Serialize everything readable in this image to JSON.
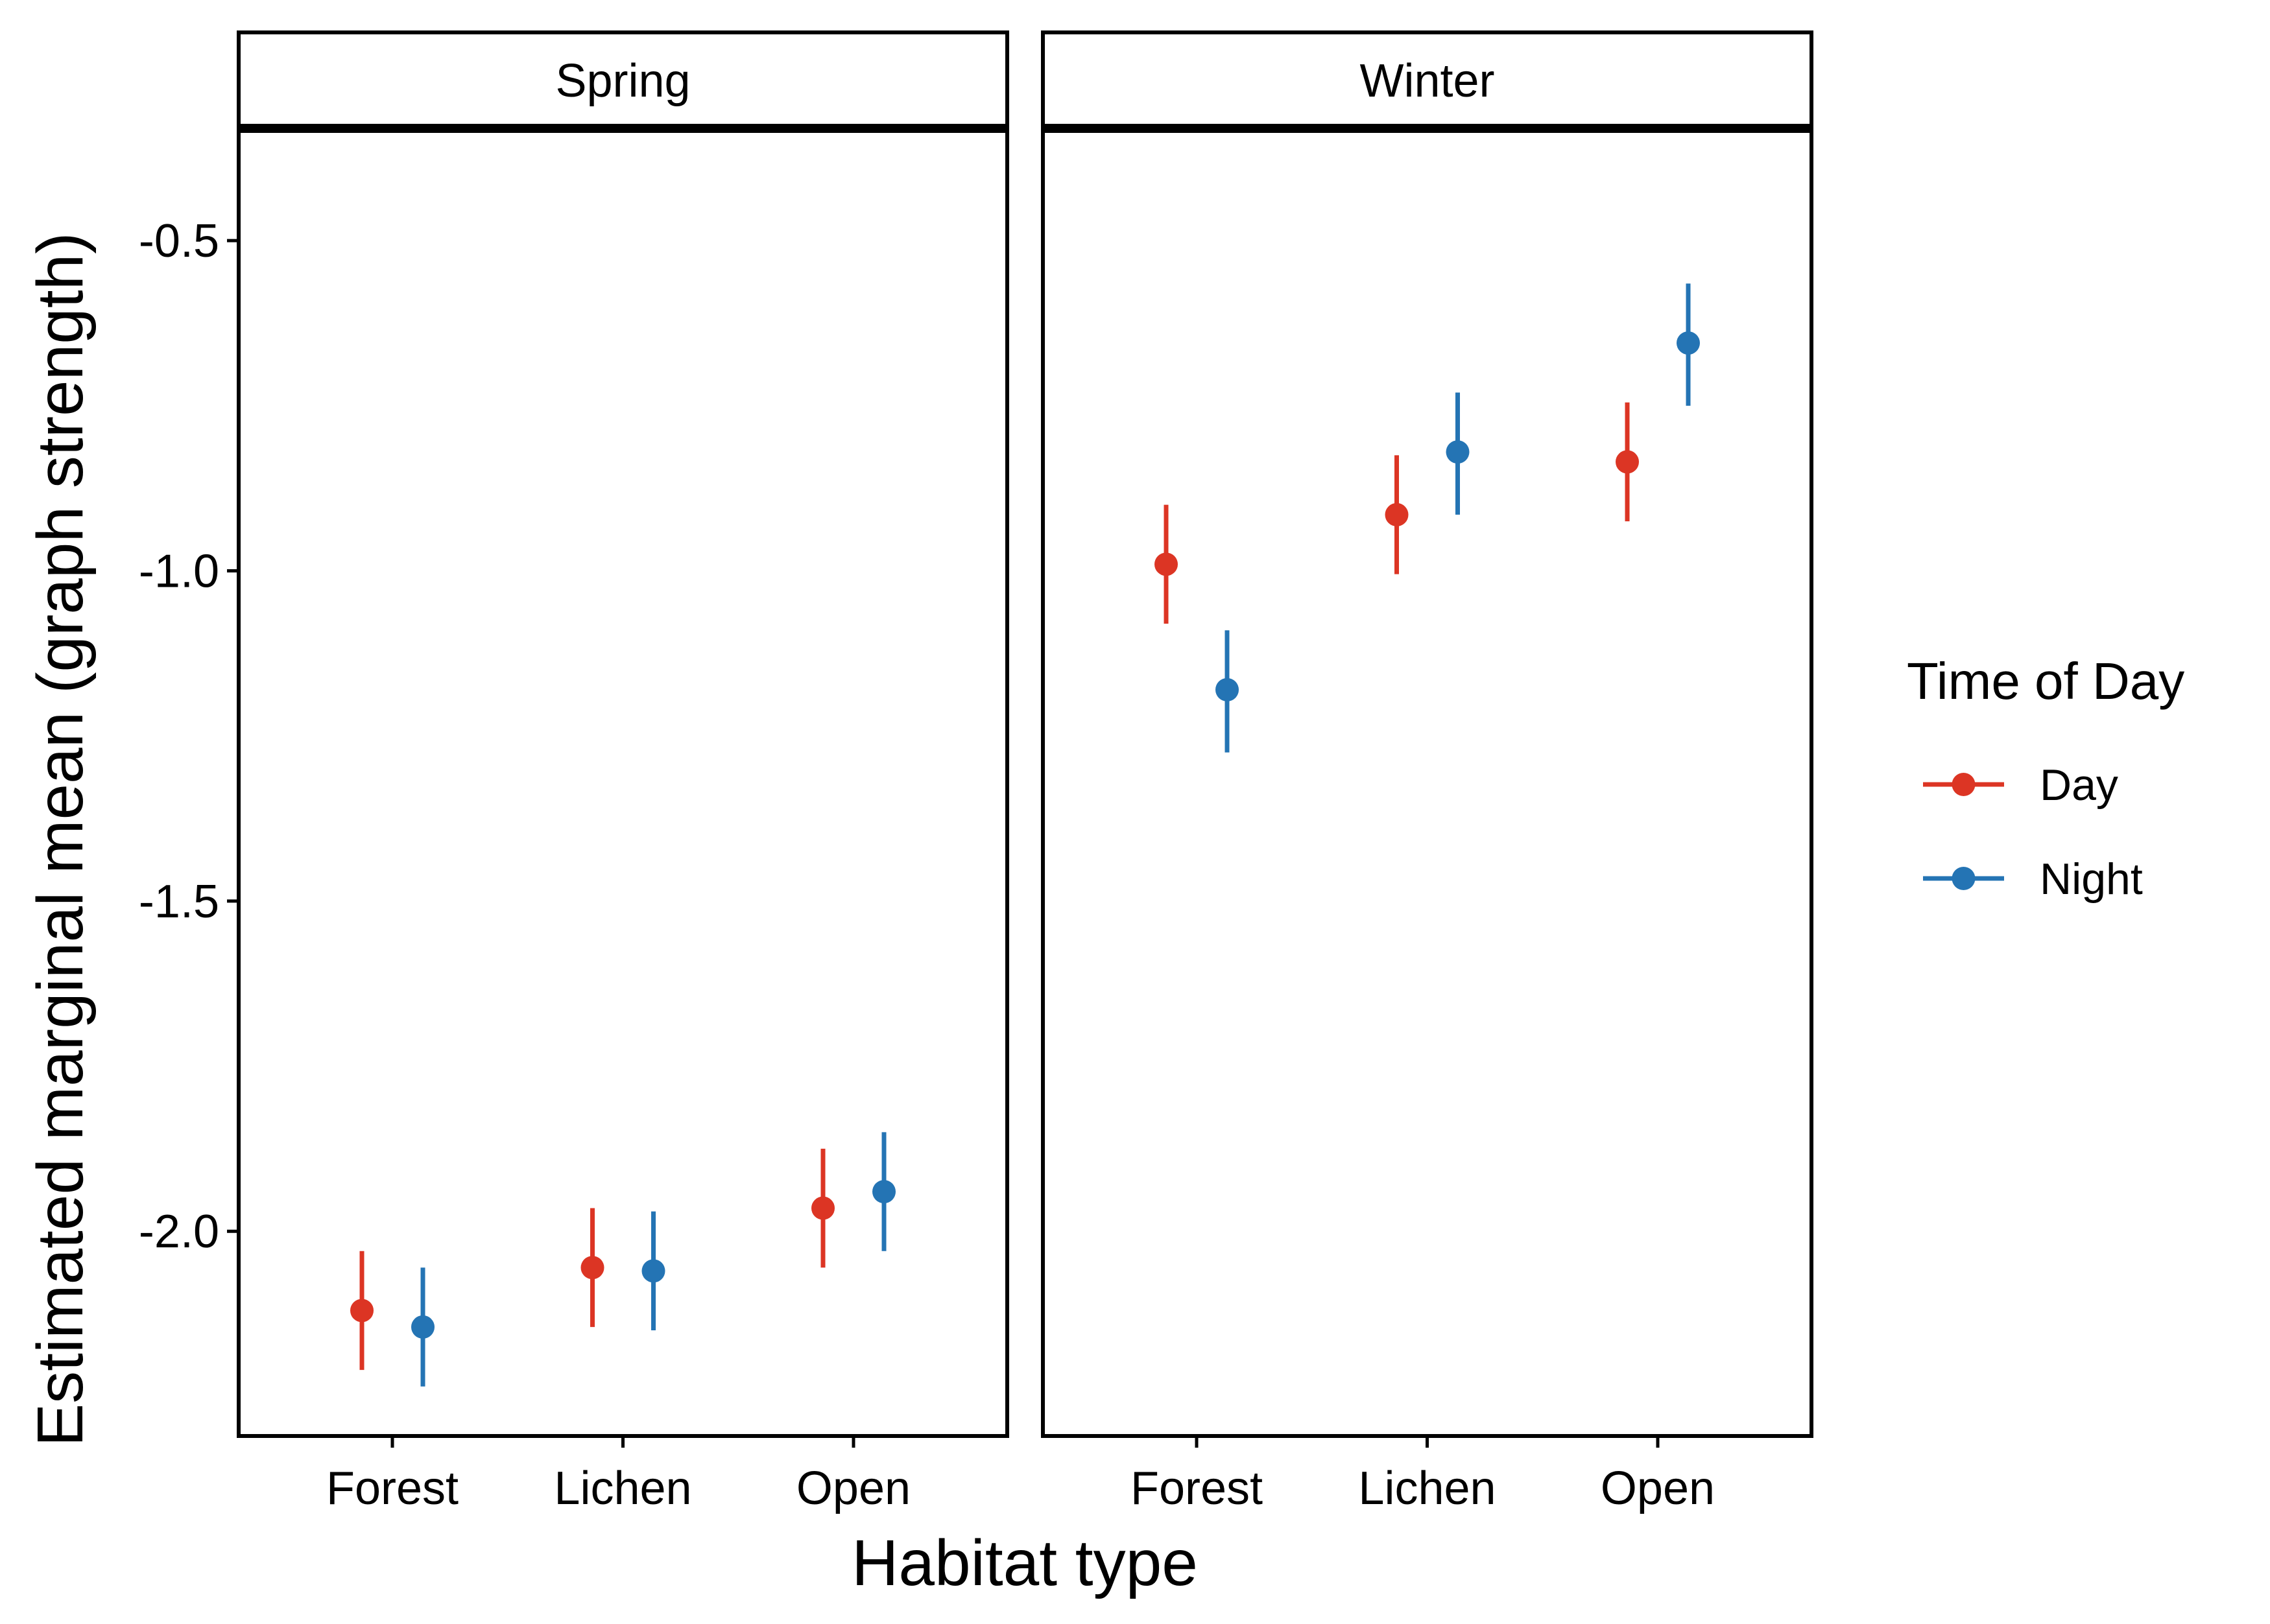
{
  "chart_data": {
    "type": "scatter",
    "subtype": "point-range faceted",
    "xlabel": "Habitat type",
    "ylabel": "Estimated marginal mean (graph strength)",
    "ylim": [
      -2.31,
      -0.33
    ],
    "yticks": [
      -0.5,
      -1.0,
      -1.5,
      -2.0
    ],
    "ytick_labels": [
      "-0.5",
      "-1.0",
      "-1.5",
      "-2.0"
    ],
    "categories": [
      "Forest",
      "Lichen",
      "Open"
    ],
    "grid": false,
    "legend": {
      "title": "Time of Day",
      "placement": "right",
      "entries": [
        {
          "name": "Day",
          "color": "#DC3524"
        },
        {
          "name": "Night",
          "color": "#2474B4"
        }
      ]
    },
    "panels": [
      {
        "label": "Spring",
        "series": [
          {
            "name": "Day",
            "color": "#DC3524",
            "values": [
              -2.12,
              -2.055,
              -1.965
            ],
            "lower": [
              -2.21,
              -2.145,
              -2.055
            ],
            "upper": [
              -2.03,
              -1.965,
              -1.875
            ]
          },
          {
            "name": "Night",
            "color": "#2474B4",
            "values": [
              -2.145,
              -2.06,
              -1.94
            ],
            "lower": [
              -2.235,
              -2.15,
              -2.03
            ],
            "upper": [
              -2.055,
              -1.97,
              -1.85
            ]
          }
        ]
      },
      {
        "label": "Winter",
        "series": [
          {
            "name": "Day",
            "color": "#DC3524",
            "values": [
              -0.99,
              -0.915,
              -0.835
            ],
            "lower": [
              -1.08,
              -1.005,
              -0.925
            ],
            "upper": [
              -0.9,
              -0.825,
              -0.745
            ]
          },
          {
            "name": "Night",
            "color": "#2474B4",
            "values": [
              -1.18,
              -0.82,
              -0.655
            ],
            "lower": [
              -1.275,
              -0.915,
              -0.75
            ],
            "upper": [
              -1.09,
              -0.73,
              -0.565
            ]
          }
        ]
      }
    ]
  }
}
